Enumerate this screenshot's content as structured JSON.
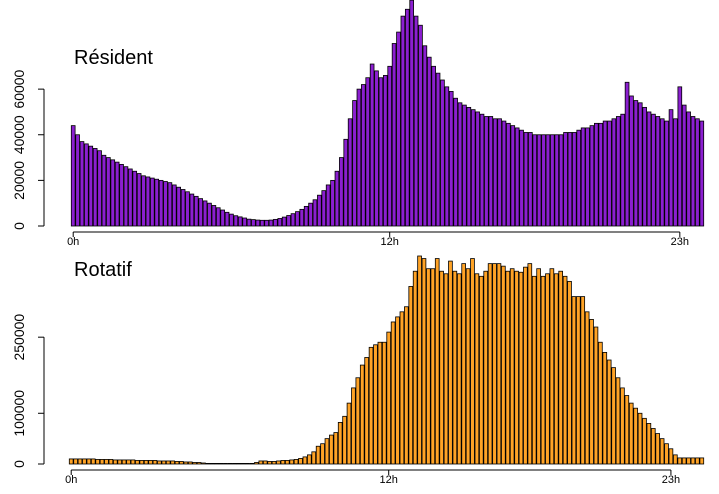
{
  "chart_data": [
    {
      "type": "bar",
      "title": "Résident",
      "bar_color": "#8B1FD0",
      "edge_color": "#000000",
      "ylim": [
        0,
        96000
      ],
      "yticks": [
        0,
        20000,
        40000,
        60000
      ],
      "xticks": [
        {
          "index": 0,
          "label": "0h"
        },
        {
          "index": 72,
          "label": "12h"
        },
        {
          "index": 138,
          "label": "23h"
        }
      ],
      "values": [
        44000,
        40000,
        37000,
        36000,
        35000,
        34000,
        33000,
        31000,
        30000,
        29000,
        28000,
        27000,
        26000,
        25000,
        24000,
        23000,
        22000,
        21500,
        21000,
        20500,
        20000,
        19500,
        19000,
        18000,
        17000,
        16000,
        15000,
        14000,
        13000,
        12000,
        11000,
        10000,
        9000,
        8000,
        7000,
        6000,
        5200,
        4500,
        4000,
        3500,
        3000,
        2800,
        2600,
        2500,
        2500,
        2600,
        2900,
        3300,
        3900,
        4600,
        5400,
        6300,
        7300,
        8600,
        10000,
        11500,
        13500,
        15500,
        18000,
        20000,
        24000,
        30000,
        38000,
        47000,
        55000,
        60000,
        62000,
        65000,
        71000,
        68000,
        65000,
        66000,
        70000,
        80000,
        85000,
        92000,
        95000,
        99000,
        92000,
        88000,
        79000,
        74000,
        70000,
        67000,
        64000,
        61000,
        59000,
        56000,
        54000,
        53000,
        52000,
        51000,
        50000,
        49000,
        48000,
        48000,
        47000,
        47000,
        46000,
        45000,
        44000,
        43000,
        42000,
        41000,
        41000,
        40000,
        40000,
        40000,
        40000,
        40000,
        40000,
        40000,
        41000,
        41000,
        41000,
        42000,
        43000,
        43000,
        44000,
        45000,
        45000,
        46000,
        46000,
        47000,
        48000,
        49000,
        63000,
        57000,
        55000,
        54000,
        52000,
        50000,
        49000,
        48000,
        47000,
        46000,
        51000,
        47000,
        61000,
        53000,
        50000,
        48000,
        47000,
        46000
      ]
    },
    {
      "type": "bar",
      "title": "Rotatif",
      "bar_color": "#FFA326",
      "edge_color": "#000000",
      "ylim": [
        0,
        412000
      ],
      "yticks": [
        0,
        100000,
        250000
      ],
      "xticks": [
        {
          "index": 0,
          "label": "0h"
        },
        {
          "index": 72,
          "label": "12h"
        },
        {
          "index": 136,
          "label": "23h"
        }
      ],
      "values": [
        10000,
        10000,
        10000,
        10000,
        10000,
        10000,
        9000,
        9000,
        9000,
        9000,
        8000,
        8000,
        8000,
        8000,
        8000,
        7000,
        7000,
        7000,
        7000,
        7000,
        6000,
        6000,
        6000,
        6000,
        5000,
        5000,
        4000,
        4000,
        3000,
        3000,
        2000,
        1000,
        0,
        0,
        0,
        0,
        0,
        0,
        0,
        0,
        0,
        0,
        3000,
        6000,
        6000,
        5000,
        5000,
        6000,
        7000,
        7000,
        8000,
        9000,
        11000,
        14000,
        18000,
        24000,
        35000,
        40000,
        50000,
        57000,
        62000,
        82000,
        94000,
        120000,
        150000,
        170000,
        195000,
        210000,
        230000,
        235000,
        240000,
        240000,
        260000,
        280000,
        290000,
        300000,
        310000,
        350000,
        380000,
        410000,
        405000,
        385000,
        385000,
        405000,
        380000,
        375000,
        400000,
        380000,
        375000,
        395000,
        385000,
        405000,
        375000,
        370000,
        380000,
        395000,
        395000,
        395000,
        390000,
        380000,
        385000,
        380000,
        378000,
        388000,
        395000,
        370000,
        385000,
        370000,
        375000,
        385000,
        375000,
        380000,
        370000,
        360000,
        330000,
        330000,
        330000,
        300000,
        285000,
        270000,
        240000,
        220000,
        205000,
        190000,
        170000,
        150000,
        135000,
        120000,
        110000,
        100000,
        90000,
        80000,
        70000,
        60000,
        50000,
        40000,
        30000,
        18000,
        12000,
        12000,
        12000,
        12000,
        12000,
        12000
      ]
    }
  ]
}
